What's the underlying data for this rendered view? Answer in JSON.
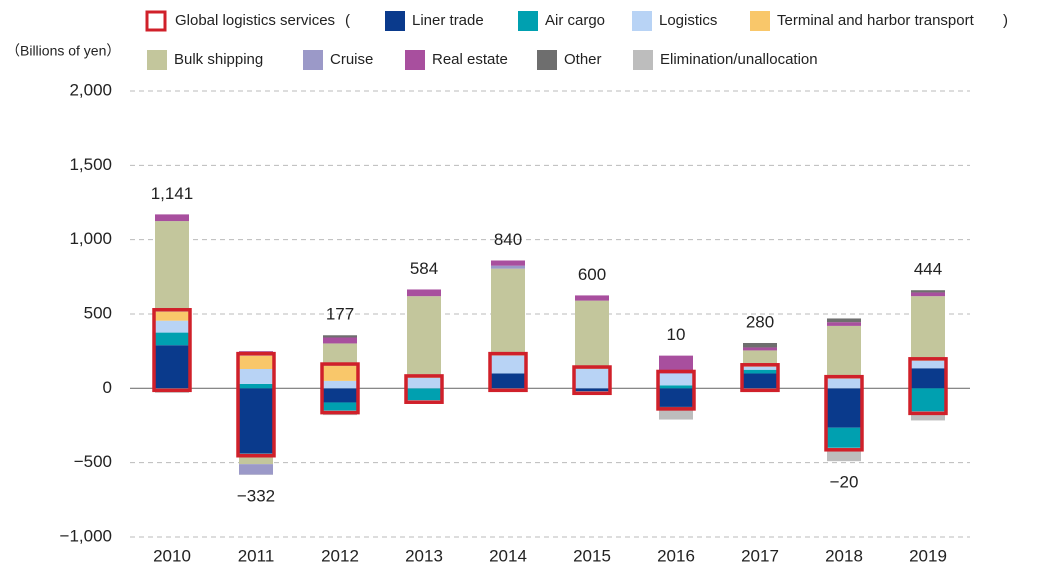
{
  "chart_data": {
    "type": "stacked_bar",
    "y_label": "（Billions of yen）",
    "group": {
      "name": "Global logistics services",
      "open": "(",
      "close": ")",
      "color": "#d0202a",
      "members": 4
    },
    "categories": [
      "2010",
      "2011",
      "2012",
      "2013",
      "2014",
      "2015",
      "2016",
      "2017",
      "2018",
      "2019"
    ],
    "series": [
      {
        "name": "Liner trade",
        "color": "#0a3a8c",
        "values": [
          290,
          -440,
          -95,
          0,
          100,
          -20,
          -125,
          100,
          -265,
          135
        ]
      },
      {
        "name": "Air cargo",
        "color": "#00a0b0",
        "values": [
          85,
          30,
          -55,
          -80,
          0,
          0,
          20,
          25,
          -135,
          -155
        ]
      },
      {
        "name": "Logistics",
        "color": "#b8d3f5",
        "values": [
          80,
          100,
          50,
          70,
          120,
          130,
          80,
          20,
          65,
          50
        ]
      },
      {
        "name": "Terminal and harbor transport",
        "color": "#f9c76a",
        "values": [
          60,
          90,
          100,
          0,
          0,
          0,
          0,
          0,
          0,
          0
        ]
      },
      {
        "name": "Bulk shipping",
        "color": "#c3c69c",
        "values": [
          610,
          -70,
          152,
          550,
          585,
          460,
          0,
          110,
          355,
          435
        ]
      },
      {
        "name": "Cruise",
        "color": "#9b99c8",
        "values": [
          0,
          -70,
          0,
          0,
          20,
          0,
          0,
          0,
          0,
          0
        ]
      },
      {
        "name": "Real estate",
        "color": "#a84f9e",
        "values": [
          45,
          30,
          40,
          45,
          35,
          35,
          120,
          20,
          25,
          25
        ]
      },
      {
        "name": "Other",
        "color": "#6e6e6e",
        "values": [
          0,
          0,
          15,
          0,
          0,
          0,
          -20,
          30,
          25,
          15
        ]
      },
      {
        "name": "Elimination/unallocation",
        "color": "#bdbdbd",
        "values": [
          -30,
          -2,
          -30,
          -1,
          -20,
          -5,
          -65,
          -25,
          -90,
          -61
        ]
      }
    ],
    "totals": [
      1141,
      -332,
      177,
      584,
      840,
      600,
      10,
      280,
      -20,
      444
    ],
    "total_labels": [
      "1,141",
      "−332",
      "177",
      "584",
      "840",
      "600",
      "10",
      "280",
      "−20",
      "444"
    ],
    "ylim": [
      -1000,
      2000
    ],
    "yticks": [
      {
        "value": -1000,
        "label": "−1,000"
      },
      {
        "value": -500,
        "label": "−500"
      },
      0,
      500,
      {
        "value": 1000,
        "label": "1,000"
      },
      {
        "value": 1500,
        "label": "1,500"
      },
      {
        "value": 2000,
        "label": "2,000"
      }
    ],
    "grid": true
  }
}
